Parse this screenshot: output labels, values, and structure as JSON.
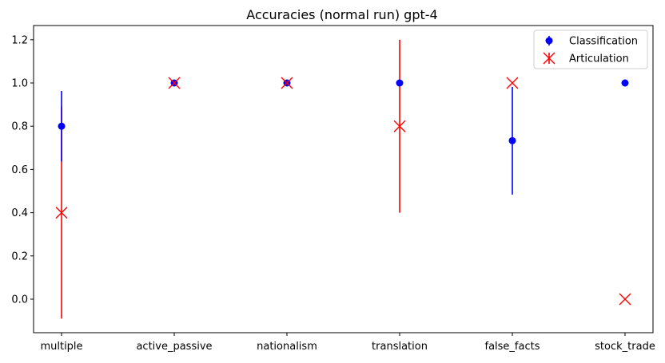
{
  "chart_data": {
    "type": "scatter",
    "title": "Accuracies (normal run) gpt-4",
    "xlabel": "",
    "ylabel": "",
    "categories": [
      "multiple",
      "active_passive",
      "nationalism",
      "translation",
      "false_facts",
      "stock_trade"
    ],
    "ylim": [
      -0.14,
      1.265
    ],
    "yticks": [
      "0.0",
      "0.2",
      "0.4",
      "0.6",
      "0.8",
      "1.0",
      "1.2"
    ],
    "ytick_values": [
      0.0,
      0.2,
      0.4,
      0.6,
      0.8,
      1.0,
      1.2
    ],
    "grid": false,
    "legend_position": "top-right",
    "series": [
      {
        "name": "Classification",
        "marker": "circle",
        "color": "#0000ff",
        "values": [
          0.8,
          1.0,
          1.0,
          1.0,
          0.733,
          1.0
        ],
        "error": [
          0.163,
          0.0,
          0.0,
          0.0,
          0.249,
          0.0
        ]
      },
      {
        "name": "Articulation",
        "marker": "x",
        "color": "#ff0000",
        "values": [
          0.4,
          1.0,
          1.0,
          0.8,
          1.0,
          0.0
        ],
        "error": [
          0.49,
          0.0,
          0.0,
          0.4,
          0.0,
          0.0
        ]
      }
    ]
  }
}
